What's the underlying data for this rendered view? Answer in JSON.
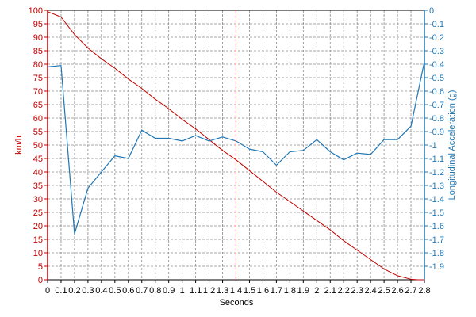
{
  "chart_data": {
    "type": "line",
    "xlabel": "Seconds",
    "xlim": [
      0,
      2.8
    ],
    "x_ticks": [
      "0",
      "0.1",
      "0.2",
      "0.3",
      "0.4",
      "0.5",
      "0.6",
      "0.7",
      "0.8",
      "0.9",
      "1",
      "1.1",
      "1.2",
      "1.3",
      "1.4",
      "1.5",
      "1.6",
      "1.7",
      "1.8",
      "1.9",
      "2",
      "2.1",
      "2.2",
      "2.3",
      "2.4",
      "2.5",
      "2.6",
      "2.7",
      "2.8"
    ],
    "x_tick_values": [
      0,
      0.1,
      0.2,
      0.3,
      0.4,
      0.5,
      0.6,
      0.7,
      0.8,
      0.9,
      1.0,
      1.1,
      1.2,
      1.3,
      1.4,
      1.5,
      1.6,
      1.7,
      1.8,
      1.9,
      2.0,
      2.1,
      2.2,
      2.3,
      2.4,
      2.5,
      2.6,
      2.7,
      2.8
    ],
    "y_left": {
      "label": "km/h",
      "lim": [
        0,
        100
      ],
      "ticks": [
        "0",
        "5",
        "10",
        "15",
        "20",
        "25",
        "30",
        "35",
        "40",
        "45",
        "50",
        "55",
        "60",
        "65",
        "70",
        "75",
        "80",
        "85",
        "90",
        "95",
        "100"
      ],
      "tick_values": [
        0,
        5,
        10,
        15,
        20,
        25,
        30,
        35,
        40,
        45,
        50,
        55,
        60,
        65,
        70,
        75,
        80,
        85,
        90,
        95,
        100
      ],
      "color": "#c00000"
    },
    "y_right": {
      "label": "Longitudinal Acceleration (g)",
      "lim": [
        -2,
        0
      ],
      "ticks": [
        "0",
        "-0.1",
        "-0.2",
        "-0.3",
        "-0.4",
        "-0.5",
        "-0.6",
        "-0.7",
        "-0.8",
        "-0.9",
        "-1",
        "-1.1",
        "-1.2",
        "-1.3",
        "-1.4",
        "-1.5",
        "-1.6",
        "-1.7",
        "-1.8",
        "-1.9"
      ],
      "tick_values": [
        0,
        -0.1,
        -0.2,
        -0.3,
        -0.4,
        -0.5,
        -0.6,
        -0.7,
        -0.8,
        -0.9,
        -1.0,
        -1.1,
        -1.2,
        -1.3,
        -1.4,
        -1.5,
        -1.6,
        -1.7,
        -1.8,
        -1.9
      ],
      "color": "#1f77b4"
    },
    "grid": true,
    "marker_x": 1.4,
    "series": [
      {
        "axis": "left",
        "color": "#c00000",
        "x": [
          0,
          0.1,
          0.2,
          0.3,
          0.4,
          0.5,
          0.6,
          0.7,
          0.8,
          0.9,
          1.0,
          1.1,
          1.2,
          1.3,
          1.4,
          1.5,
          1.6,
          1.7,
          1.8,
          1.9,
          2.0,
          2.1,
          2.2,
          2.3,
          2.4,
          2.5,
          2.6,
          2.7,
          2.75,
          2.8
        ],
        "values": [
          99.5,
          97.5,
          91,
          86,
          82,
          78.5,
          74.5,
          71,
          67,
          63.5,
          59.5,
          56,
          52,
          48,
          44.5,
          40.5,
          36.5,
          32.5,
          29,
          25.5,
          22,
          18.5,
          14.5,
          11,
          7.5,
          4,
          1.5,
          0.2,
          0,
          0
        ]
      },
      {
        "axis": "right",
        "color": "#1f77b4",
        "x": [
          0,
          0.1,
          0.2,
          0.3,
          0.4,
          0.5,
          0.6,
          0.7,
          0.8,
          0.9,
          1.0,
          1.1,
          1.2,
          1.3,
          1.4,
          1.5,
          1.6,
          1.7,
          1.8,
          1.9,
          2.0,
          2.1,
          2.2,
          2.3,
          2.4,
          2.5,
          2.6,
          2.7,
          2.8
        ],
        "values": [
          -0.42,
          -0.41,
          -1.66,
          -1.32,
          -1.2,
          -1.08,
          -1.1,
          -0.89,
          -0.95,
          -0.95,
          -0.97,
          -0.93,
          -0.97,
          -0.94,
          -0.97,
          -1.03,
          -1.05,
          -1.15,
          -1.05,
          -1.04,
          -0.96,
          -1.05,
          -1.11,
          -1.06,
          -1.07,
          -0.96,
          -0.96,
          -0.86,
          -0.38
        ]
      }
    ]
  }
}
